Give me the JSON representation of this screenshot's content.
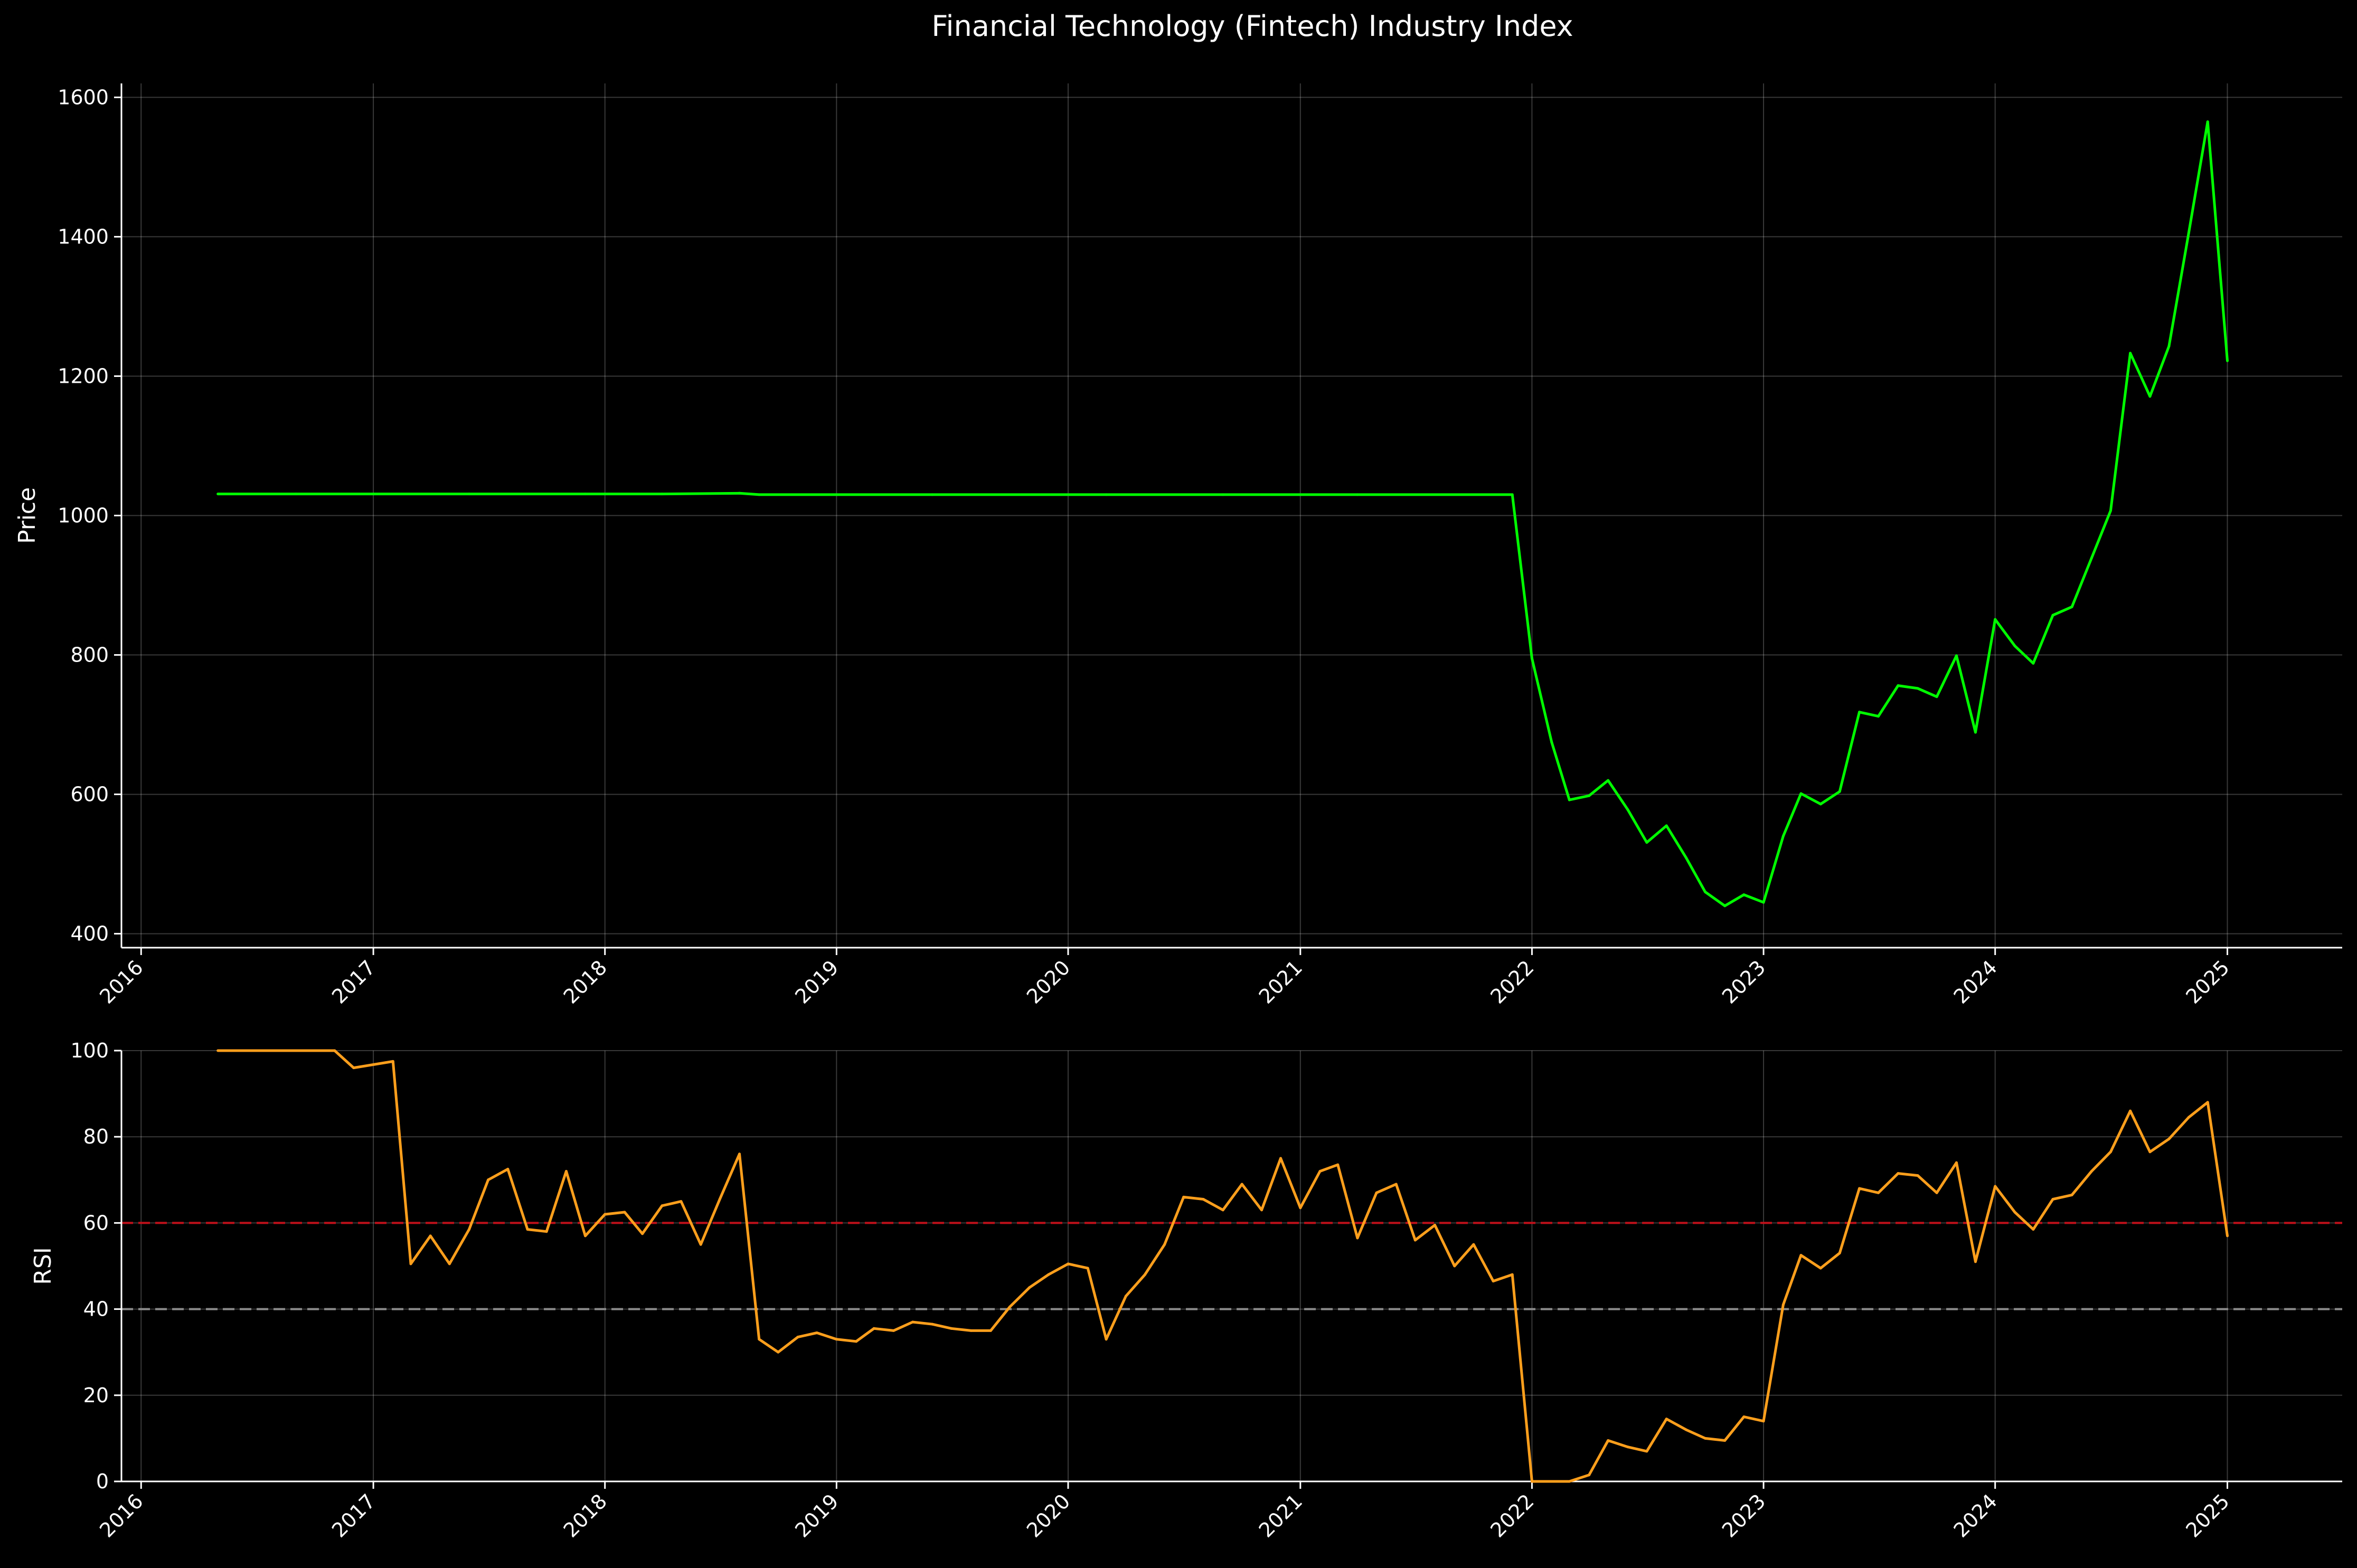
{
  "colors": {
    "background": "#000000",
    "price_line": "#00ff00",
    "rsi_line": "#ff9f1c",
    "overbought_line": "#c0101a",
    "oversold_line": "#8c8c8c",
    "text": "#ffffff"
  },
  "chart_data": [
    {
      "type": "line",
      "title": "Financial Technology (Fintech) Industry Index",
      "xlabel": "",
      "ylabel": "Price",
      "x_axis": "date",
      "xlim": [
        "2015-12-01",
        "2025-07-01"
      ],
      "ylim": [
        380,
        1620
      ],
      "xticks": [
        "2016",
        "2017",
        "2018",
        "2019",
        "2020",
        "2021",
        "2022",
        "2023",
        "2024",
        "2025"
      ],
      "yticks": [
        400,
        600,
        800,
        1000,
        1200,
        1400,
        1600
      ],
      "grid": true,
      "series": [
        {
          "color": "#00ff00",
          "points": [
            [
              "2016-05-01",
              1031
            ],
            [
              "2016-09-01",
              1031
            ],
            [
              "2017-01-01",
              1031
            ],
            [
              "2017-06-01",
              1031
            ],
            [
              "2017-12-01",
              1031
            ],
            [
              "2018-04-01",
              1031
            ],
            [
              "2018-08-01",
              1032
            ],
            [
              "2018-09-01",
              1030
            ],
            [
              "2019-06-01",
              1030
            ],
            [
              "2020-03-01",
              1030
            ],
            [
              "2020-09-01",
              1030
            ],
            [
              "2021-04-01",
              1030
            ],
            [
              "2021-12-01",
              1030
            ],
            [
              "2022-01-01",
              795
            ],
            [
              "2022-02-01",
              675
            ],
            [
              "2022-03-01",
              592
            ],
            [
              "2022-04-01",
              598
            ],
            [
              "2022-05-01",
              620
            ],
            [
              "2022-06-01",
              578
            ],
            [
              "2022-07-01",
              531
            ],
            [
              "2022-08-01",
              555
            ],
            [
              "2022-09-01",
              509
            ],
            [
              "2022-10-01",
              460
            ],
            [
              "2022-11-01",
              440
            ],
            [
              "2022-12-01",
              456
            ],
            [
              "2023-01-01",
              445
            ],
            [
              "2023-02-01",
              540
            ],
            [
              "2023-03-01",
              601
            ],
            [
              "2023-04-01",
              586
            ],
            [
              "2023-05-01",
              604
            ],
            [
              "2023-06-01",
              718
            ],
            [
              "2023-07-01",
              712
            ],
            [
              "2023-08-01",
              756
            ],
            [
              "2023-09-01",
              752
            ],
            [
              "2023-10-01",
              740
            ],
            [
              "2023-11-01",
              799
            ],
            [
              "2023-12-01",
              689
            ],
            [
              "2024-01-01",
              851
            ],
            [
              "2024-02-01",
              813
            ],
            [
              "2024-03-01",
              788
            ],
            [
              "2024-04-01",
              857
            ],
            [
              "2024-05-01",
              869
            ],
            [
              "2024-06-01",
              939
            ],
            [
              "2024-07-01",
              1007
            ],
            [
              "2024-08-01",
              1233
            ],
            [
              "2024-09-01",
              1171
            ],
            [
              "2024-10-01",
              1243
            ],
            [
              "2024-11-01",
              1405
            ],
            [
              "2024-12-01",
              1565
            ],
            [
              "2025-01-01",
              1222
            ]
          ]
        }
      ]
    },
    {
      "type": "line",
      "xlabel": "",
      "ylabel": "RSI",
      "x_axis": "date",
      "xlim": [
        "2015-12-01",
        "2025-07-01"
      ],
      "ylim": [
        0,
        100
      ],
      "xticks": [
        "2016",
        "2017",
        "2018",
        "2019",
        "2020",
        "2021",
        "2022",
        "2023",
        "2024",
        "2025"
      ],
      "yticks": [
        0,
        20,
        40,
        60,
        80,
        100
      ],
      "grid": true,
      "reference_lines": [
        {
          "y": 60,
          "color": "#c0101a",
          "style": "dashed"
        },
        {
          "y": 40,
          "color": "#8c8c8c",
          "style": "dashed"
        }
      ],
      "series": [
        {
          "color": "#ff9f1c",
          "points": [
            [
              "2016-05-01",
              100
            ],
            [
              "2016-11-01",
              100
            ],
            [
              "2016-12-01",
              96
            ],
            [
              "2017-02-01",
              97.5
            ],
            [
              "2017-03-01",
              50.5
            ],
            [
              "2017-04-01",
              57
            ],
            [
              "2017-05-01",
              50.5
            ],
            [
              "2017-06-01",
              58.5
            ],
            [
              "2017-07-01",
              70
            ],
            [
              "2017-08-01",
              72.5
            ],
            [
              "2017-09-01",
              58.5
            ],
            [
              "2017-10-01",
              58
            ],
            [
              "2017-11-01",
              72
            ],
            [
              "2017-12-01",
              57
            ],
            [
              "2018-01-01",
              62
            ],
            [
              "2018-02-01",
              62.5
            ],
            [
              "2018-03-01",
              57.5
            ],
            [
              "2018-04-01",
              64
            ],
            [
              "2018-05-01",
              65
            ],
            [
              "2018-06-01",
              55
            ],
            [
              "2018-07-01",
              65.5
            ],
            [
              "2018-08-01",
              76
            ],
            [
              "2018-09-01",
              33
            ],
            [
              "2018-10-01",
              30
            ],
            [
              "2018-11-01",
              33.5
            ],
            [
              "2018-12-01",
              34.5
            ],
            [
              "2019-01-01",
              33
            ],
            [
              "2019-02-01",
              32.5
            ],
            [
              "2019-03-01",
              35.5
            ],
            [
              "2019-04-01",
              35
            ],
            [
              "2019-05-01",
              37
            ],
            [
              "2019-06-01",
              36.5
            ],
            [
              "2019-07-01",
              35.5
            ],
            [
              "2019-08-01",
              35
            ],
            [
              "2019-09-01",
              35
            ],
            [
              "2019-10-01",
              40.5
            ],
            [
              "2019-11-01",
              45
            ],
            [
              "2019-12-01",
              48
            ],
            [
              "2020-01-01",
              50.5
            ],
            [
              "2020-02-01",
              49.5
            ],
            [
              "2020-03-01",
              33
            ],
            [
              "2020-04-01",
              43
            ],
            [
              "2020-05-01",
              48
            ],
            [
              "2020-06-01",
              55
            ],
            [
              "2020-07-01",
              66
            ],
            [
              "2020-08-01",
              65.5
            ],
            [
              "2020-09-01",
              63
            ],
            [
              "2020-10-01",
              69
            ],
            [
              "2020-11-01",
              63
            ],
            [
              "2020-12-01",
              75
            ],
            [
              "2021-01-01",
              63.5
            ],
            [
              "2021-02-01",
              72
            ],
            [
              "2021-03-01",
              73.5
            ],
            [
              "2021-04-01",
              56.5
            ],
            [
              "2021-05-01",
              67
            ],
            [
              "2021-06-01",
              69
            ],
            [
              "2021-07-01",
              56
            ],
            [
              "2021-08-01",
              59.5
            ],
            [
              "2021-09-01",
              50
            ],
            [
              "2021-10-01",
              55
            ],
            [
              "2021-11-01",
              46.5
            ],
            [
              "2021-12-01",
              48
            ],
            [
              "2022-01-01",
              0
            ],
            [
              "2022-02-01",
              0
            ],
            [
              "2022-03-01",
              0
            ],
            [
              "2022-04-01",
              1.5
            ],
            [
              "2022-05-01",
              9.5
            ],
            [
              "2022-06-01",
              8
            ],
            [
              "2022-07-01",
              7
            ],
            [
              "2022-08-01",
              14.5
            ],
            [
              "2022-09-01",
              12
            ],
            [
              "2022-10-01",
              10
            ],
            [
              "2022-11-01",
              9.5
            ],
            [
              "2022-12-01",
              15
            ],
            [
              "2023-01-01",
              14
            ],
            [
              "2023-02-01",
              41
            ],
            [
              "2023-03-01",
              52.5
            ],
            [
              "2023-04-01",
              49.5
            ],
            [
              "2023-05-01",
              53
            ],
            [
              "2023-06-01",
              68
            ],
            [
              "2023-07-01",
              67
            ],
            [
              "2023-08-01",
              71.5
            ],
            [
              "2023-09-01",
              71
            ],
            [
              "2023-10-01",
              67
            ],
            [
              "2023-11-01",
              74
            ],
            [
              "2023-12-01",
              51
            ],
            [
              "2024-01-01",
              68.5
            ],
            [
              "2024-02-01",
              62.5
            ],
            [
              "2024-03-01",
              58.5
            ],
            [
              "2024-04-01",
              65.5
            ],
            [
              "2024-05-01",
              66.5
            ],
            [
              "2024-06-01",
              72
            ],
            [
              "2024-07-01",
              76.5
            ],
            [
              "2024-08-01",
              86
            ],
            [
              "2024-09-01",
              76.5
            ],
            [
              "2024-10-01",
              79.5
            ],
            [
              "2024-11-01",
              84.5
            ],
            [
              "2024-12-01",
              88
            ],
            [
              "2025-01-01",
              57
            ]
          ]
        }
      ]
    }
  ]
}
